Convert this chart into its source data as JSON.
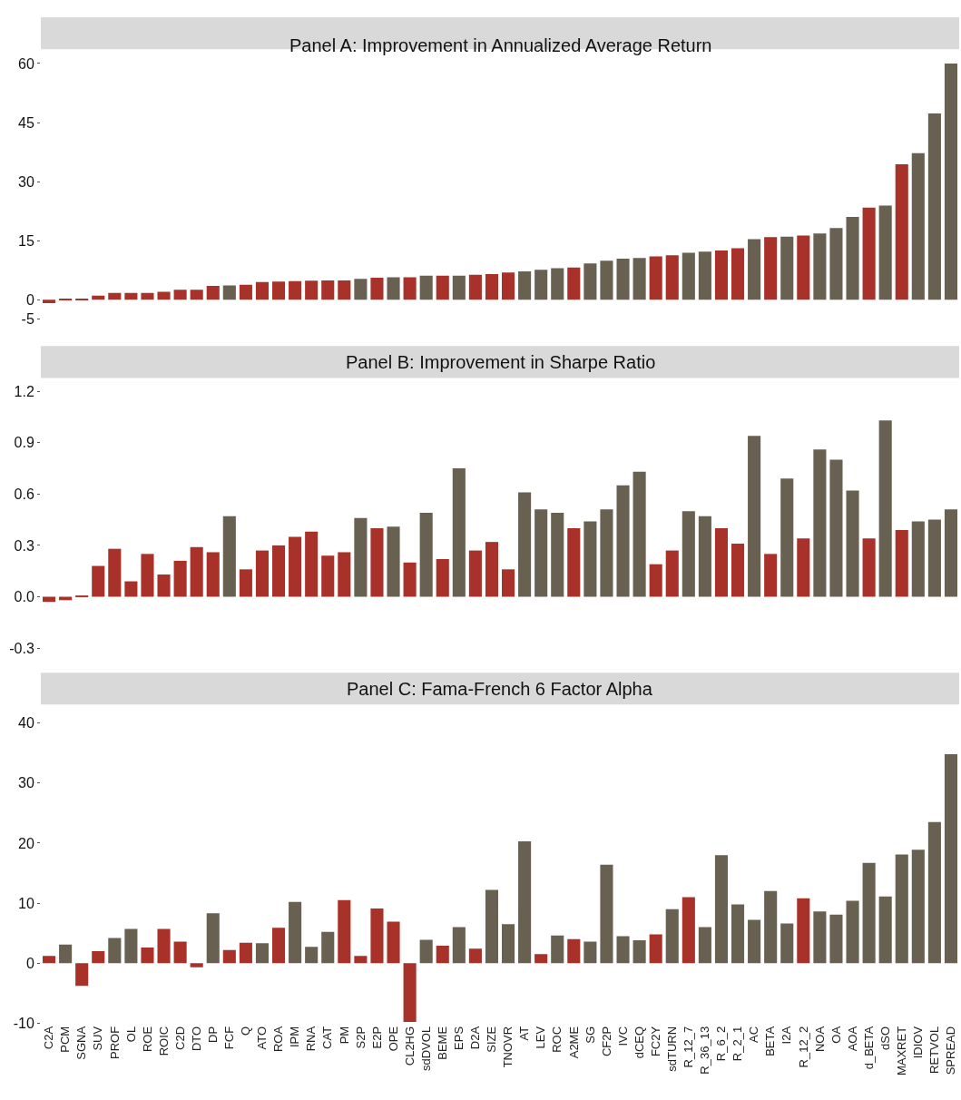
{
  "chart_data": [
    {
      "type": "bar",
      "title": "Panel A: Improvement in Annualized Average Return",
      "tick_labels": "y",
      "categories": [
        "C2A",
        "PCM",
        "SGNA",
        "SUV",
        "PROF",
        "OL",
        "ROE",
        "ROIC",
        "C2D",
        "DTO",
        "DP",
        "FCF",
        "Q",
        "ATO",
        "ROA",
        "IPM",
        "RNA",
        "CAT",
        "PM",
        "S2P",
        "E2P",
        "OPE",
        "CL2HG",
        "sdDVOL",
        "BEME",
        "EPS",
        "D2A",
        "SIZE",
        "TNOVR",
        "AT",
        "LEV",
        "ROC",
        "A2ME",
        "SG",
        "CF2P",
        "IVC",
        "dCEQ",
        "FC2Y",
        "sdTURN",
        "R_12_7",
        "R_36_13",
        "R_6_2",
        "R_2_1",
        "AC",
        "BETA",
        "I2A",
        "R_12_2",
        "NOA",
        "OA",
        "AOA",
        "d_BETA",
        "dSO",
        "MAXRET",
        "IDIOV",
        "RETVOL",
        "SPREAD"
      ],
      "values": [
        -0.9,
        0.1,
        0.3,
        1.0,
        1.7,
        1.7,
        1.7,
        2.0,
        2.5,
        2.5,
        3.5,
        3.6,
        3.8,
        4.5,
        4.6,
        4.7,
        4.8,
        4.9,
        4.9,
        5.3,
        5.6,
        5.7,
        5.7,
        6.1,
        6.1,
        6.1,
        6.3,
        6.5,
        6.9,
        7.2,
        7.6,
        8.0,
        8.2,
        9.2,
        9.9,
        10.4,
        10.6,
        11.0,
        11.3,
        11.9,
        12.2,
        12.5,
        13.1,
        15.4,
        15.9,
        16.0,
        16.3,
        16.8,
        18.2,
        21.0,
        23.4,
        23.9,
        34.4,
        37.2,
        47.3,
        60.0
      ],
      "colors": [
        "#a8312a",
        "#a8312a",
        "#a8312a",
        "#a8312a",
        "#a8312a",
        "#a8312a",
        "#a8312a",
        "#a8312a",
        "#a8312a",
        "#a8312a",
        "#a8312a",
        "#686050",
        "#a8312a",
        "#a8312a",
        "#a8312a",
        "#a8312a",
        "#a8312a",
        "#a8312a",
        "#a8312a",
        "#686050",
        "#a8312a",
        "#686050",
        "#a8312a",
        "#686050",
        "#a8312a",
        "#686050",
        "#a8312a",
        "#a8312a",
        "#a8312a",
        "#686050",
        "#686050",
        "#686050",
        "#a8312a",
        "#686050",
        "#686050",
        "#686050",
        "#686050",
        "#a8312a",
        "#a8312a",
        "#686050",
        "#686050",
        "#a8312a",
        "#a8312a",
        "#686050",
        "#a8312a",
        "#686050",
        "#a8312a",
        "#686050",
        "#686050",
        "#686050",
        "#a8312a",
        "#686050",
        "#a8312a",
        "#686050",
        "#686050",
        "#686050"
      ],
      "ylim": [
        -5,
        60
      ],
      "yticks": [
        -5,
        0,
        15,
        30,
        45,
        60
      ]
    },
    {
      "type": "bar",
      "title": "Panel B: Improvement in Sharpe Ratio",
      "tick_labels": "y",
      "categories": [
        "C2A",
        "PCM",
        "SGNA",
        "SUV",
        "PROF",
        "OL",
        "ROE",
        "ROIC",
        "C2D",
        "DTO",
        "DP",
        "FCF",
        "Q",
        "ATO",
        "ROA",
        "IPM",
        "RNA",
        "CAT",
        "PM",
        "S2P",
        "E2P",
        "OPE",
        "CL2HG",
        "sdDVOL",
        "BEME",
        "EPS",
        "D2A",
        "SIZE",
        "TNOVR",
        "AT",
        "LEV",
        "ROC",
        "A2ME",
        "SG",
        "CF2P",
        "IVC",
        "dCEQ",
        "FC2Y",
        "sdTURN",
        "R_12_7",
        "R_36_13",
        "R_6_2",
        "R_2_1",
        "AC",
        "BETA",
        "I2A",
        "R_12_2",
        "NOA",
        "OA",
        "AOA",
        "d_BETA",
        "dSO",
        "MAXRET",
        "IDIOV",
        "RETVOL",
        "SPREAD"
      ],
      "values": [
        -0.03,
        -0.02,
        0.005,
        0.18,
        0.28,
        0.09,
        0.25,
        0.13,
        0.21,
        0.29,
        0.26,
        0.47,
        0.16,
        0.27,
        0.3,
        0.35,
        0.38,
        0.24,
        0.26,
        0.46,
        0.4,
        0.41,
        0.2,
        0.49,
        0.22,
        0.75,
        0.27,
        0.32,
        0.16,
        0.61,
        0.51,
        0.49,
        0.4,
        0.44,
        0.51,
        0.65,
        0.73,
        0.19,
        0.27,
        0.5,
        0.47,
        0.4,
        0.31,
        0.94,
        0.25,
        0.69,
        0.34,
        0.86,
        0.8,
        0.62,
        0.34,
        1.03,
        0.39,
        0.44,
        0.45,
        0.51
      ],
      "colors": [
        "#a8312a",
        "#a8312a",
        "#a8312a",
        "#a8312a",
        "#a8312a",
        "#a8312a",
        "#a8312a",
        "#a8312a",
        "#a8312a",
        "#a8312a",
        "#a8312a",
        "#686050",
        "#a8312a",
        "#a8312a",
        "#a8312a",
        "#a8312a",
        "#a8312a",
        "#a8312a",
        "#a8312a",
        "#686050",
        "#a8312a",
        "#686050",
        "#a8312a",
        "#686050",
        "#a8312a",
        "#686050",
        "#a8312a",
        "#a8312a",
        "#a8312a",
        "#686050",
        "#686050",
        "#686050",
        "#a8312a",
        "#686050",
        "#686050",
        "#686050",
        "#686050",
        "#a8312a",
        "#a8312a",
        "#686050",
        "#686050",
        "#a8312a",
        "#a8312a",
        "#686050",
        "#a8312a",
        "#686050",
        "#a8312a",
        "#686050",
        "#686050",
        "#686050",
        "#a8312a",
        "#686050",
        "#a8312a",
        "#686050",
        "#686050",
        "#686050"
      ],
      "ylim": [
        -0.3,
        1.2
      ],
      "yticks": [
        -0.3,
        {
          "value": 0,
          "label": "0.0"
        },
        0.3,
        0.6,
        0.9,
        1.2
      ]
    },
    {
      "type": "bar",
      "title": "Panel C: Fama-French 6 Factor Alpha",
      "categories": [
        "C2A",
        "PCM",
        "SGNA",
        "SUV",
        "PROF",
        "OL",
        "ROE",
        "ROIC",
        "C2D",
        "DTO",
        "DP",
        "FCF",
        "Q",
        "ATO",
        "ROA",
        "IPM",
        "RNA",
        "CAT",
        "PM",
        "S2P",
        "E2P",
        "OPE",
        "CL2HG",
        "sdDVOL",
        "BEME",
        "EPS",
        "D2A",
        "SIZE",
        "TNOVR",
        "AT",
        "LEV",
        "ROC",
        "A2ME",
        "SG",
        "CF2P",
        "IVC",
        "dCEQ",
        "FC2Y",
        "sdTURN",
        "R_12_7",
        "R_36_13",
        "R_6_2",
        "R_2_1",
        "AC",
        "BETA",
        "I2A",
        "R_12_2",
        "NOA",
        "OA",
        "AOA",
        "d_BETA",
        "dSO",
        "MAXRET",
        "IDIOV",
        "RETVOL",
        "SPREAD"
      ],
      "values": [
        1.2,
        3.1,
        -3.8,
        2.0,
        4.2,
        5.7,
        2.6,
        5.7,
        3.6,
        -0.7,
        8.3,
        2.2,
        3.4,
        3.3,
        5.9,
        10.2,
        2.7,
        5.2,
        10.5,
        1.2,
        9.1,
        6.9,
        -9.8,
        3.9,
        2.9,
        6.0,
        2.4,
        12.2,
        6.5,
        20.3,
        1.5,
        4.6,
        4.0,
        3.6,
        16.4,
        4.5,
        3.8,
        4.8,
        9.0,
        11.0,
        6.0,
        18.0,
        9.8,
        7.2,
        12.0,
        6.6,
        10.8,
        8.6,
        8.1,
        10.4,
        16.7,
        11.1,
        18.1,
        18.9,
        23.5,
        34.8
      ],
      "colors": [
        "#a8312a",
        "#686050",
        "#a8312a",
        "#a8312a",
        "#686050",
        "#686050",
        "#a8312a",
        "#a8312a",
        "#a8312a",
        "#a8312a",
        "#686050",
        "#a8312a",
        "#a8312a",
        "#686050",
        "#a8312a",
        "#686050",
        "#686050",
        "#686050",
        "#a8312a",
        "#a8312a",
        "#a8312a",
        "#a8312a",
        "#a8312a",
        "#686050",
        "#a8312a",
        "#686050",
        "#a8312a",
        "#686050",
        "#686050",
        "#686050",
        "#a8312a",
        "#686050",
        "#a8312a",
        "#686050",
        "#686050",
        "#686050",
        "#686050",
        "#a8312a",
        "#686050",
        "#a8312a",
        "#686050",
        "#686050",
        "#686050",
        "#686050",
        "#686050",
        "#686050",
        "#a8312a",
        "#686050",
        "#686050",
        "#686050",
        "#686050",
        "#686050",
        "#686050",
        "#686050",
        "#686050",
        "#686050"
      ],
      "ylim": [
        -10,
        40
      ],
      "yticks": [
        -10,
        0,
        10,
        20,
        30,
        40
      ]
    }
  ]
}
